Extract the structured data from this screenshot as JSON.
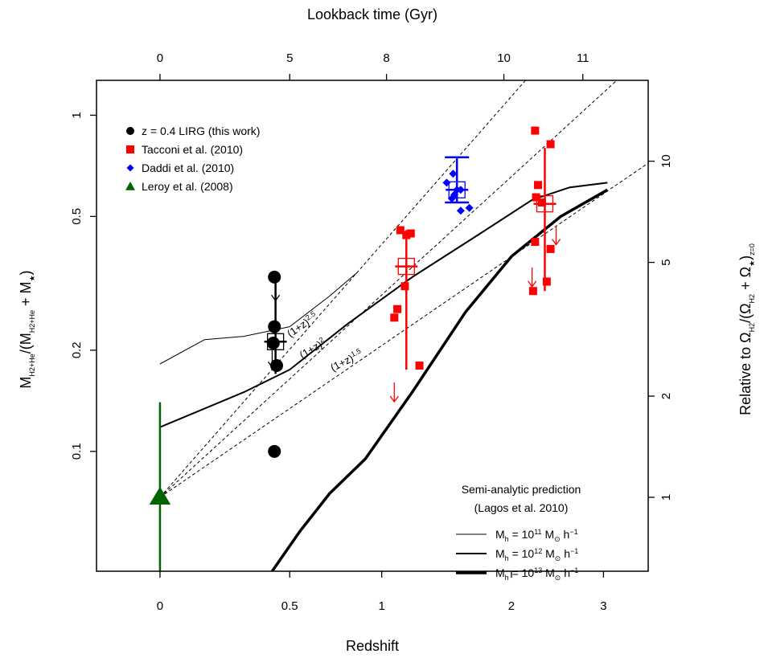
{
  "chart_data": {
    "type": "scatter",
    "xlabel": "Redshift",
    "x_scale": "log(1+z)",
    "xlim": [
      -0.18,
      3.6
    ],
    "x_ticks": [
      {
        "value": 0,
        "label": "0"
      },
      {
        "value": 0.5,
        "label": "0.5"
      },
      {
        "value": 1,
        "label": "1"
      },
      {
        "value": 2,
        "label": "2"
      },
      {
        "value": 3,
        "label": "3"
      }
    ],
    "top_axis": {
      "label": "Lookback time (Gyr)",
      "ticks": [
        {
          "z": 0,
          "label": "0"
        },
        {
          "z": 0.5,
          "label": "5"
        },
        {
          "z": 1.03,
          "label": "8"
        },
        {
          "z": 1.93,
          "label": "10"
        },
        {
          "z": 2.75,
          "label": "11"
        }
      ]
    },
    "ylabel": "M_H2+He/(M_H2+He + M_★)",
    "y_scale": "log",
    "ylim": [
      0.044,
      1.27
    ],
    "y_ticks": [
      {
        "value": 0.1,
        "label": "0.1"
      },
      {
        "value": 0.2,
        "label": "0.2"
      },
      {
        "value": 0.5,
        "label": "0.5"
      },
      {
        "value": 1,
        "label": "1"
      }
    ],
    "right_axis": {
      "label": "Relative to Ω_H2/(Ω_H2 + Ω_★)_z=0",
      "reference_y": 0.073,
      "ticks": [
        {
          "value": 1,
          "label": "1"
        },
        {
          "value": 2,
          "label": "2"
        },
        {
          "value": 5,
          "label": "5"
        },
        {
          "value": 10,
          "label": "10"
        }
      ]
    },
    "grid": false,
    "legend_placement": "top-left",
    "series": [
      {
        "name": "z = 0.4 LIRG (this work)",
        "color": "#000000",
        "marker": "circle",
        "points": [
          [
            0.43,
            0.33
          ],
          [
            0.43,
            0.235
          ],
          [
            0.425,
            0.21
          ],
          [
            0.44,
            0.18
          ],
          [
            0.43,
            0.1
          ]
        ],
        "mean": {
          "x": 0.435,
          "y": 0.212,
          "yerr": [
            0.17,
            0.33
          ]
        },
        "upper_limits": [
          [
            0.435,
            0.3
          ],
          [
            0.42,
            0.19
          ]
        ]
      },
      {
        "name": "Tacconi et al. (2010)",
        "color": "#ff0000",
        "marker": "square",
        "points": [
          [
            1.12,
            0.455
          ],
          [
            1.16,
            0.44
          ],
          [
            1.19,
            0.445
          ],
          [
            1.15,
            0.31
          ],
          [
            1.1,
            0.265
          ],
          [
            1.08,
            0.25
          ],
          [
            1.25,
            0.18
          ],
          [
            2.23,
            0.9
          ],
          [
            2.26,
            0.62
          ],
          [
            2.24,
            0.57
          ],
          [
            2.3,
            0.55
          ],
          [
            2.39,
            0.82
          ],
          [
            2.23,
            0.42
          ],
          [
            2.39,
            0.4
          ],
          [
            2.35,
            0.32
          ],
          [
            2.21,
            0.3
          ]
        ],
        "mean": {
          "x": 1.16,
          "y": 0.355,
          "yerr": [
            0.175,
            0.455
          ]
        },
        "mean_2": {
          "x": 2.33,
          "y": 0.545,
          "yerr": [
            0.3,
            0.8
          ]
        },
        "upper_limits": [
          [
            1.08,
            0.15
          ],
          [
            2.2,
            0.33
          ],
          [
            2.45,
            0.44
          ]
        ]
      },
      {
        "name": "Daddi et al. (2010)",
        "color": "#0000ff",
        "marker": "diamond",
        "points": [
          [
            1.45,
            0.63
          ],
          [
            1.5,
            0.67
          ],
          [
            1.53,
            0.6
          ],
          [
            1.56,
            0.6
          ],
          [
            1.51,
            0.58
          ],
          [
            1.49,
            0.565
          ],
          [
            1.56,
            0.52
          ],
          [
            1.63,
            0.53
          ]
        ],
        "mean": {
          "x": 1.53,
          "y": 0.6,
          "yerr": [
            0.55,
            0.75
          ]
        }
      },
      {
        "name": "Leroy et al. (2008)",
        "color": "#006400",
        "marker": "triangle",
        "points": [
          [
            0,
            0.073
          ]
        ],
        "yerr": [
          0.044,
          0.14
        ]
      }
    ],
    "model_curves": {
      "title": "Semi-analytic prediction",
      "subtitle": "(Lagos et al. 2010)",
      "lines": [
        {
          "label_main": "M",
          "label_sub": "h",
          "label_rest": " = 10",
          "label_sup": "11",
          "label_tail": " M",
          "label_sun": "⊙",
          "label_end": " h",
          "label_end_sup": "−1",
          "width": 1,
          "x": [
            0,
            0.15,
            0.3,
            0.5,
            0.7,
            0.85
          ],
          "y": [
            0.182,
            0.215,
            0.22,
            0.235,
            0.29,
            0.34
          ]
        },
        {
          "label_main": "M",
          "label_sub": "h",
          "label_rest": " = 10",
          "label_sup": "12",
          "label_tail": " M",
          "label_sun": "⊙",
          "label_end": " h",
          "label_end_sup": "−1",
          "width": 2,
          "x": [
            0,
            0.3,
            0.5,
            0.8,
            1.2,
            1.7,
            2.2,
            2.6,
            3.05
          ],
          "y": [
            0.118,
            0.15,
            0.175,
            0.24,
            0.33,
            0.44,
            0.56,
            0.61,
            0.63
          ]
        },
        {
          "label_main": "M",
          "label_sub": "h",
          "label_rest": " = 10",
          "label_sup": "13",
          "label_tail": " M",
          "label_sun": "⊙",
          "label_end": " h",
          "label_end_sup": "−1",
          "width": 3.5,
          "x": [
            0.42,
            0.55,
            0.7,
            0.9,
            1.2,
            1.6,
            2.0,
            2.5,
            3.05
          ],
          "y": [
            0.044,
            0.058,
            0.075,
            0.095,
            0.15,
            0.26,
            0.38,
            0.5,
            0.6
          ]
        }
      ]
    },
    "reference_lines": [
      {
        "label": "(1+z)^1.5",
        "exponent": 1.5
      },
      {
        "label": "(1+z)^2",
        "exponent": 2
      },
      {
        "label": "(1+z)^2.5",
        "exponent": 2.5
      }
    ]
  }
}
